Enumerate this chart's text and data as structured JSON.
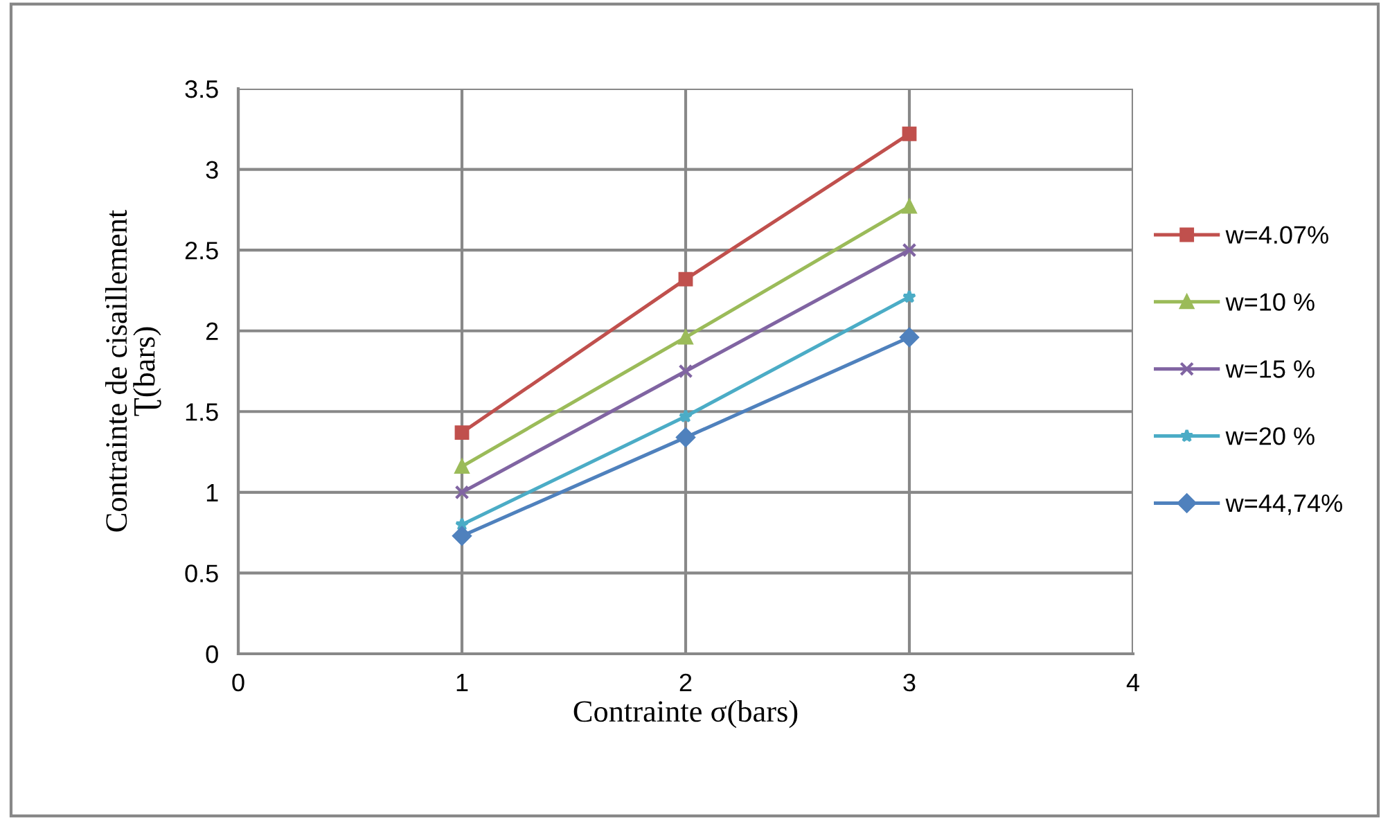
{
  "chart_data": {
    "type": "line",
    "xlabel": "Contrainte σ(bars)",
    "ylabel": "Contrainte de cisaillement\nƮ(bars)",
    "x": [
      1,
      2,
      3
    ],
    "series": [
      {
        "name": "w=4.07%",
        "color": "#c0504d",
        "marker": "square",
        "values": [
          1.37,
          2.32,
          3.22
        ]
      },
      {
        "name": "w=10 %",
        "color": "#9bbb59",
        "marker": "triangle",
        "values": [
          1.16,
          1.96,
          2.77
        ]
      },
      {
        "name": "w=15 %",
        "color": "#8064a2",
        "marker": "cross",
        "values": [
          1.0,
          1.75,
          2.5
        ]
      },
      {
        "name": "w=20 %",
        "color": "#4bacc6",
        "marker": "star",
        "values": [
          0.8,
          1.47,
          2.21
        ]
      },
      {
        "name": "w=44,74%",
        "color": "#4f81bd",
        "marker": "diamond",
        "values": [
          0.73,
          1.34,
          1.96
        ]
      }
    ],
    "xlim": [
      0,
      4
    ],
    "xticks": [
      0,
      1,
      2,
      3,
      4
    ],
    "ylim": [
      0,
      3.5
    ],
    "yticks": [
      0,
      0.5,
      1,
      1.5,
      2,
      2.5,
      3,
      3.5
    ],
    "grid": true,
    "legend": "right",
    "line_style": "solid"
  }
}
